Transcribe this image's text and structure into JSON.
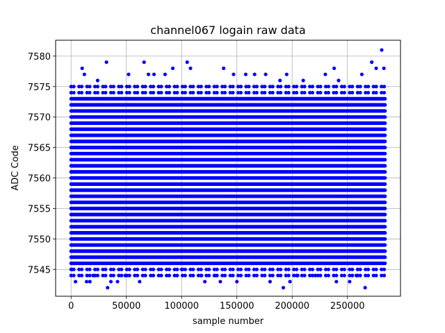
{
  "chart_data": {
    "type": "scatter",
    "title": "channel067 logain raw data",
    "xlabel": "sample number",
    "ylabel": "ADC Code",
    "xlim": [
      -14000,
      298000
    ],
    "ylim": [
      7540.6,
      7582.6
    ],
    "x_ticks": [
      0,
      50000,
      100000,
      150000,
      200000,
      250000
    ],
    "x_tick_labels": [
      "0",
      "50000",
      "100000",
      "150000",
      "200000",
      "250000"
    ],
    "y_ticks": [
      7545,
      7550,
      7555,
      7560,
      7565,
      7570,
      7575,
      7580
    ],
    "y_tick_labels": [
      "7545",
      "7550",
      "7555",
      "7560",
      "7565",
      "7570",
      "7575",
      "7580"
    ],
    "grid": true,
    "series": [
      {
        "color": "#0000ff",
        "marker": "dot",
        "x_range": [
          0,
          284000
        ],
        "dense_y_values": [
          7544,
          7545,
          7546,
          7547,
          7548,
          7549,
          7550,
          7551,
          7552,
          7553,
          7554,
          7555,
          7556,
          7557,
          7558,
          7559,
          7560,
          7561,
          7562,
          7563,
          7564,
          7565,
          7566,
          7567,
          7568,
          7569,
          7570,
          7571,
          7572,
          7573,
          7574,
          7575
        ],
        "outliers": [
          {
            "x": 1000,
            "y": 7545
          },
          {
            "x": 4000,
            "y": 7543
          },
          {
            "x": 8000,
            "y": 7546
          },
          {
            "x": 10000,
            "y": 7578
          },
          {
            "x": 12000,
            "y": 7577
          },
          {
            "x": 14000,
            "y": 7543
          },
          {
            "x": 17000,
            "y": 7543
          },
          {
            "x": 20000,
            "y": 7544
          },
          {
            "x": 24000,
            "y": 7576
          },
          {
            "x": 32000,
            "y": 7579
          },
          {
            "x": 33000,
            "y": 7542
          },
          {
            "x": 36000,
            "y": 7543
          },
          {
            "x": 42000,
            "y": 7543
          },
          {
            "x": 49000,
            "y": 7544
          },
          {
            "x": 52000,
            "y": 7577
          },
          {
            "x": 62000,
            "y": 7543
          },
          {
            "x": 66000,
            "y": 7579
          },
          {
            "x": 70000,
            "y": 7577
          },
          {
            "x": 75000,
            "y": 7577
          },
          {
            "x": 85000,
            "y": 7577
          },
          {
            "x": 92000,
            "y": 7578
          },
          {
            "x": 100000,
            "y": 7545
          },
          {
            "x": 105000,
            "y": 7579
          },
          {
            "x": 108000,
            "y": 7578
          },
          {
            "x": 118000,
            "y": 7544
          },
          {
            "x": 121000,
            "y": 7543
          },
          {
            "x": 130000,
            "y": 7544
          },
          {
            "x": 135000,
            "y": 7543
          },
          {
            "x": 138000,
            "y": 7578
          },
          {
            "x": 147000,
            "y": 7577
          },
          {
            "x": 150000,
            "y": 7543
          },
          {
            "x": 158000,
            "y": 7577
          },
          {
            "x": 166000,
            "y": 7577
          },
          {
            "x": 176000,
            "y": 7577
          },
          {
            "x": 180000,
            "y": 7543
          },
          {
            "x": 189000,
            "y": 7576
          },
          {
            "x": 192000,
            "y": 7542
          },
          {
            "x": 195000,
            "y": 7577
          },
          {
            "x": 198000,
            "y": 7543
          },
          {
            "x": 205000,
            "y": 7544
          },
          {
            "x": 210000,
            "y": 7576
          },
          {
            "x": 221000,
            "y": 7544
          },
          {
            "x": 230000,
            "y": 7577
          },
          {
            "x": 238000,
            "y": 7578
          },
          {
            "x": 240000,
            "y": 7543
          },
          {
            "x": 242000,
            "y": 7576
          },
          {
            "x": 252000,
            "y": 7543
          },
          {
            "x": 258000,
            "y": 7544
          },
          {
            "x": 263000,
            "y": 7577
          },
          {
            "x": 266000,
            "y": 7542
          },
          {
            "x": 272000,
            "y": 7579
          },
          {
            "x": 276000,
            "y": 7578
          },
          {
            "x": 281000,
            "y": 7581
          },
          {
            "x": 283000,
            "y": 7578
          }
        ]
      }
    ]
  }
}
